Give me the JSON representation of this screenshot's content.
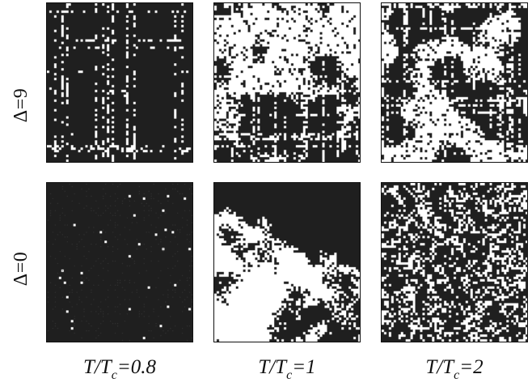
{
  "figure": {
    "rows": [
      {
        "delta_label": "Δ=9"
      },
      {
        "delta_label": "Δ=0"
      }
    ],
    "columns": [
      {
        "ratio_prefix": "T/T",
        "ratio_sub": "c",
        "ratio_value": "=0.8",
        "temperature_ratio": 0.8
      },
      {
        "ratio_prefix": "T/T",
        "ratio_sub": "c",
        "ratio_value": "=1",
        "temperature_ratio": 1
      },
      {
        "ratio_prefix": "T/T",
        "ratio_sub": "c",
        "ratio_value": "=2",
        "temperature_ratio": 2
      }
    ],
    "panels": [
      {
        "row": 0,
        "col": 0,
        "pattern": "blocky-ordered",
        "white_fraction": 0.1
      },
      {
        "row": 0,
        "col": 1,
        "pattern": "blocky-critical",
        "white_fraction": 0.5
      },
      {
        "row": 0,
        "col": 2,
        "pattern": "blocky-disordered",
        "white_fraction": 0.35
      },
      {
        "row": 1,
        "col": 0,
        "pattern": "ordered",
        "white_fraction": 0.01
      },
      {
        "row": 1,
        "col": 1,
        "pattern": "critical-clusters",
        "white_fraction": 0.5
      },
      {
        "row": 1,
        "col": 2,
        "pattern": "random",
        "white_fraction": 0.35
      }
    ],
    "colors": {
      "spin_down": "#1f1f1f",
      "spin_up": "#ffffff",
      "text": "#111111"
    }
  }
}
